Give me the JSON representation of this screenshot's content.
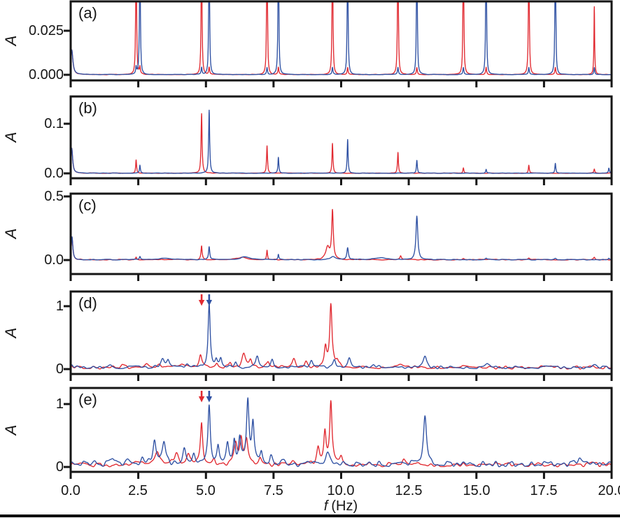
{
  "chart_data": {
    "type": "line",
    "xlabel": "f (Hz)",
    "xlabel_parts": {
      "variable": "f",
      "unit": "(Hz)"
    },
    "ylabel": "A",
    "xlim": [
      0,
      20
    ],
    "x_ticks": [
      0,
      2.5,
      5,
      7.5,
      10,
      12.5,
      15,
      17.5,
      20
    ],
    "x_tick_labels": [
      "0.0",
      "2.5",
      "5.0",
      "7.5",
      "10.0",
      "12.5",
      "15.0",
      "17.5",
      "20.0"
    ],
    "colors": {
      "red": "#e12a31",
      "blue": "#2f51a3"
    },
    "legend": "none",
    "grid": false,
    "peak_format": "[frequency_hz, amplitude, half_width_hz] Lorentzian peaks summed per series",
    "panels": [
      {
        "label": "(a)",
        "ylim": [
          0,
          0.0417
        ],
        "y_ticks": [
          {
            "value": 0.025,
            "label": "0.025"
          },
          {
            "value": 0.0,
            "label": "0.000"
          }
        ],
        "arrows": [],
        "series": [
          {
            "name": "red",
            "noise": 0.00012,
            "peaks": [
              [
                0.04,
                0.014,
                0.05
              ],
              [
                2.42,
                0.09,
                0.016
              ],
              [
                4.84,
                0.09,
                0.016
              ],
              [
                7.26,
                0.09,
                0.016
              ],
              [
                9.68,
                0.09,
                0.016
              ],
              [
                12.1,
                0.09,
                0.016
              ],
              [
                14.52,
                0.09,
                0.016
              ],
              [
                16.94,
                0.09,
                0.016
              ],
              [
                19.36,
                0.0385,
                0.015
              ],
              [
                2.56,
                0.004,
                0.02
              ],
              [
                5.12,
                0.004,
                0.02
              ],
              [
                7.68,
                0.004,
                0.02
              ],
              [
                10.24,
                0.004,
                0.02
              ],
              [
                12.8,
                0.004,
                0.02
              ],
              [
                15.36,
                0.004,
                0.02
              ],
              [
                17.92,
                0.004,
                0.02
              ]
            ]
          },
          {
            "name": "blue",
            "noise": 0.00012,
            "peaks": [
              [
                0.04,
                0.014,
                0.05
              ],
              [
                2.56,
                0.09,
                0.016
              ],
              [
                5.12,
                0.09,
                0.016
              ],
              [
                7.68,
                0.09,
                0.016
              ],
              [
                10.24,
                0.09,
                0.016
              ],
              [
                12.8,
                0.09,
                0.016
              ],
              [
                15.36,
                0.09,
                0.016
              ],
              [
                17.92,
                0.09,
                0.016
              ],
              [
                2.42,
                0.004,
                0.02
              ],
              [
                4.84,
                0.004,
                0.02
              ],
              [
                7.26,
                0.004,
                0.02
              ],
              [
                9.68,
                0.004,
                0.02
              ],
              [
                12.1,
                0.004,
                0.02
              ],
              [
                14.52,
                0.004,
                0.02
              ],
              [
                16.94,
                0.004,
                0.02
              ],
              [
                19.36,
                0.004,
                0.02
              ]
            ]
          }
        ]
      },
      {
        "label": "(b)",
        "ylim": [
          0,
          0.155
        ],
        "y_ticks": [
          {
            "value": 0.1,
            "label": "0.1"
          },
          {
            "value": 0.0,
            "label": "0.0"
          }
        ],
        "arrows": [],
        "series": [
          {
            "name": "red",
            "noise": 0.0004,
            "peaks": [
              [
                0.04,
                0.05,
                0.04
              ],
              [
                2.42,
                0.027,
                0.02
              ],
              [
                4.84,
                0.12,
                0.022
              ],
              [
                7.26,
                0.055,
                0.02
              ],
              [
                9.68,
                0.06,
                0.02
              ],
              [
                12.1,
                0.042,
                0.02
              ],
              [
                14.52,
                0.011,
                0.02
              ],
              [
                16.94,
                0.016,
                0.02
              ],
              [
                19.36,
                0.008,
                0.02
              ]
            ]
          },
          {
            "name": "blue",
            "noise": 0.0004,
            "peaks": [
              [
                0.04,
                0.05,
                0.04
              ],
              [
                2.56,
                0.016,
                0.02
              ],
              [
                5.12,
                0.127,
                0.022
              ],
              [
                7.68,
                0.032,
                0.02
              ],
              [
                10.24,
                0.068,
                0.02
              ],
              [
                12.8,
                0.026,
                0.02
              ],
              [
                15.36,
                0.008,
                0.02
              ],
              [
                17.92,
                0.02,
                0.02
              ],
              [
                19.9,
                0.01,
                0.02
              ]
            ]
          }
        ]
      },
      {
        "label": "(c)",
        "ylim": [
          0,
          0.52
        ],
        "y_ticks": [
          {
            "value": 0.5,
            "label": "0.5"
          },
          {
            "value": 0.0,
            "label": "0.0"
          }
        ],
        "arrows": [],
        "series": [
          {
            "name": "red",
            "noise": 0.003,
            "peaks": [
              [
                0.05,
                0.18,
                0.035
              ],
              [
                2.42,
                0.02,
                0.025
              ],
              [
                4.84,
                0.105,
                0.025
              ],
              [
                6.35,
                0.02,
                0.2
              ],
              [
                7.26,
                0.075,
                0.02
              ],
              [
                9.5,
                0.1,
                0.08
              ],
              [
                9.68,
                0.38,
                0.035
              ],
              [
                12.2,
                0.028,
                0.03
              ],
              [
                14.52,
                0.012,
                0.04
              ],
              [
                16.94,
                0.013,
                0.04
              ],
              [
                19.36,
                0.017,
                0.03
              ]
            ]
          },
          {
            "name": "blue",
            "noise": 0.003,
            "peaks": [
              [
                0.05,
                0.18,
                0.035
              ],
              [
                2.56,
                0.025,
                0.025
              ],
              [
                3.5,
                0.013,
                0.25
              ],
              [
                5.12,
                0.1,
                0.025
              ],
              [
                6.45,
                0.022,
                0.2
              ],
              [
                7.68,
                0.04,
                0.02
              ],
              [
                9.7,
                0.025,
                0.1
              ],
              [
                10.24,
                0.095,
                0.035
              ],
              [
                11.5,
                0.015,
                0.25
              ],
              [
                12.8,
                0.34,
                0.04
              ],
              [
                15.36,
                0.013,
                0.04
              ],
              [
                17.92,
                0.011,
                0.04
              ],
              [
                19.9,
                0.013,
                0.03
              ]
            ]
          }
        ]
      },
      {
        "label": "(d)",
        "ylim": [
          0,
          1.233
        ],
        "y_ticks": [
          {
            "value": 1,
            "label": "1"
          },
          {
            "value": 0,
            "label": "0"
          }
        ],
        "arrows": [
          {
            "series": "red",
            "f": 4.84
          },
          {
            "series": "blue",
            "f": 5.12
          }
        ],
        "series": [
          {
            "name": "red",
            "noise": 0.025,
            "peaks": [
              [
                0.05,
                0.03,
                0.05
              ],
              [
                1.9,
                0.03,
                0.12
              ],
              [
                2.8,
                0.08,
                0.1
              ],
              [
                3.3,
                0.05,
                0.08
              ],
              [
                4.1,
                0.05,
                0.08
              ],
              [
                4.8,
                0.2,
                0.06
              ],
              [
                5.4,
                0.07,
                0.06
              ],
              [
                5.9,
                0.06,
                0.06
              ],
              [
                6.4,
                0.2,
                0.08
              ],
              [
                6.65,
                0.12,
                0.06
              ],
              [
                7.3,
                0.1,
                0.06
              ],
              [
                8.25,
                0.13,
                0.07
              ],
              [
                8.7,
                0.1,
                0.06
              ],
              [
                9.42,
                0.3,
                0.05
              ],
              [
                9.62,
                1.0,
                0.05
              ],
              [
                9.85,
                0.12,
                0.06
              ],
              [
                10.8,
                0.04,
                0.1
              ],
              [
                12.2,
                0.04,
                0.1
              ],
              [
                14.5,
                0.025,
                0.1
              ],
              [
                17.6,
                0.02,
                0.1
              ]
            ]
          },
          {
            "name": "blue",
            "noise": 0.025,
            "peaks": [
              [
                0.05,
                0.03,
                0.05
              ],
              [
                1.5,
                0.03,
                0.1
              ],
              [
                3.4,
                0.13,
                0.08
              ],
              [
                3.6,
                0.11,
                0.06
              ],
              [
                4.3,
                0.06,
                0.08
              ],
              [
                5.12,
                1.02,
                0.045
              ],
              [
                5.38,
                0.1,
                0.05
              ],
              [
                5.55,
                0.13,
                0.05
              ],
              [
                6.1,
                0.1,
                0.06
              ],
              [
                6.9,
                0.19,
                0.07
              ],
              [
                7.45,
                0.12,
                0.06
              ],
              [
                8.9,
                0.1,
                0.06
              ],
              [
                9.75,
                0.12,
                0.06
              ],
              [
                10.3,
                0.15,
                0.07
              ],
              [
                11.2,
                0.05,
                0.08
              ],
              [
                13.1,
                0.17,
                0.08
              ],
              [
                15.4,
                0.04,
                0.08
              ],
              [
                19.4,
                0.05,
                0.1
              ]
            ]
          }
        ]
      },
      {
        "label": "(e)",
        "ylim": [
          0,
          1.256
        ],
        "y_ticks": [
          {
            "value": 1,
            "label": "1"
          },
          {
            "value": 0,
            "label": "0"
          }
        ],
        "arrows": [
          {
            "series": "red",
            "f": 4.84
          },
          {
            "series": "blue",
            "f": 5.12
          }
        ],
        "series": [
          {
            "name": "red",
            "noise": 0.035,
            "peaks": [
              [
                0.05,
                0.04,
                0.05
              ],
              [
                2.4,
                0.07,
                0.08
              ],
              [
                3.2,
                0.2,
                0.1
              ],
              [
                3.9,
                0.18,
                0.09
              ],
              [
                4.35,
                0.14,
                0.07
              ],
              [
                4.84,
                0.64,
                0.05
              ],
              [
                5.3,
                0.08,
                0.06
              ],
              [
                6.1,
                0.35,
                0.07
              ],
              [
                6.3,
                0.4,
                0.06
              ],
              [
                6.5,
                0.38,
                0.06
              ],
              [
                7.0,
                0.12,
                0.06
              ],
              [
                8.2,
                0.08,
                0.08
              ],
              [
                9.15,
                0.25,
                0.06
              ],
              [
                9.4,
                0.5,
                0.05
              ],
              [
                9.62,
                1.0,
                0.05
              ],
              [
                10.0,
                0.12,
                0.06
              ],
              [
                12.3,
                0.09,
                0.07
              ],
              [
                19.3,
                0.05,
                0.08
              ]
            ]
          },
          {
            "name": "blue",
            "noise": 0.045,
            "peaks": [
              [
                0.05,
                0.04,
                0.05
              ],
              [
                0.9,
                0.06,
                0.08
              ],
              [
                1.55,
                0.08,
                0.07
              ],
              [
                2.1,
                0.06,
                0.08
              ],
              [
                2.65,
                0.12,
                0.07
              ],
              [
                3.1,
                0.41,
                0.07
              ],
              [
                3.45,
                0.31,
                0.07
              ],
              [
                4.2,
                0.23,
                0.07
              ],
              [
                4.55,
                0.15,
                0.06
              ],
              [
                5.12,
                0.92,
                0.05
              ],
              [
                5.45,
                0.27,
                0.05
              ],
              [
                5.8,
                0.32,
                0.06
              ],
              [
                6.05,
                0.37,
                0.05
              ],
              [
                6.25,
                0.38,
                0.05
              ],
              [
                6.55,
                1.0,
                0.055
              ],
              [
                6.74,
                0.6,
                0.05
              ],
              [
                7.05,
                0.18,
                0.05
              ],
              [
                7.4,
                0.12,
                0.06
              ],
              [
                7.9,
                0.1,
                0.07
              ],
              [
                9.5,
                0.2,
                0.09
              ],
              [
                13.1,
                0.79,
                0.07
              ],
              [
                17.5,
                0.05,
                0.1
              ],
              [
                18.8,
                0.07,
                0.09
              ]
            ]
          }
        ]
      }
    ]
  }
}
